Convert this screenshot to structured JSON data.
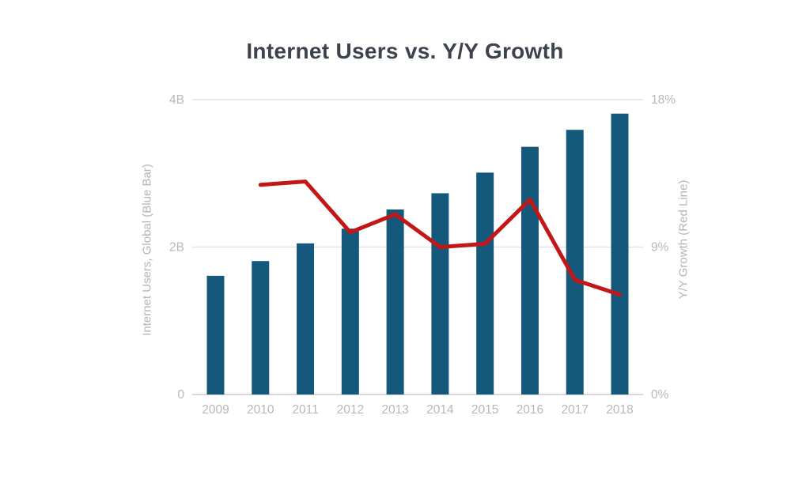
{
  "colors": {
    "bar": "#14587C",
    "line": "#C31616",
    "grid": "#E3E3E3",
    "axis_line": "#D9D9D9",
    "tick_text": "#B8B8B8",
    "axis_title_text": "#B5B5B5",
    "title_text": "#3C434C",
    "background": "#FFFFFF"
  },
  "chart_data": {
    "type": "bar",
    "title": "Internet Users vs. Y/Y Growth",
    "categories": [
      "2009",
      "2010",
      "2011",
      "2012",
      "2013",
      "2014",
      "2015",
      "2016",
      "2017",
      "2018"
    ],
    "series": [
      {
        "name": "Internet Users, Global (Blue Bar)",
        "render": "bar",
        "axis": "left",
        "unit": "billions",
        "color": "#14587C",
        "values": [
          1.61,
          1.81,
          2.05,
          2.25,
          2.51,
          2.73,
          3.01,
          3.36,
          3.59,
          3.81
        ]
      },
      {
        "name": "Y/Y Growth (Red Line)",
        "render": "line",
        "axis": "right",
        "unit": "percent",
        "color": "#C31616",
        "values": [
          null,
          12.8,
          13.0,
          9.9,
          11.0,
          9.0,
          9.2,
          11.9,
          7.0,
          6.1
        ]
      }
    ],
    "left_axis": {
      "title": "Internet Users, Global (Blue Bar)",
      "ticks": [
        "0",
        "2B",
        "4B"
      ],
      "min": 0,
      "max": 4
    },
    "right_axis": {
      "title": "Y/Y Growth (Red Line)",
      "ticks": [
        "0%",
        "9%",
        "18%"
      ],
      "min": 0,
      "max": 18
    },
    "grid": "horizontal",
    "legend": "none"
  }
}
